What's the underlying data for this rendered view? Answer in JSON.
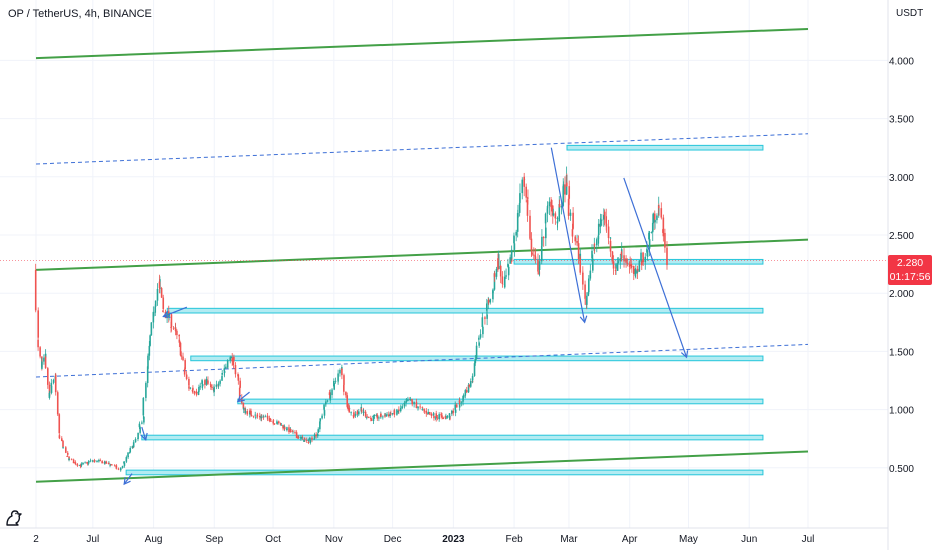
{
  "header": {
    "symbol_title": "OP / TetherUS, 4h, BINANCE",
    "unit": "USDT"
  },
  "price_tag": {
    "price": "2.280",
    "countdown": "01:17:56",
    "color": "#f23645"
  },
  "logo": {
    "icon": "tradingview-logo-icon"
  },
  "colors": {
    "candle_up": "#26a69a",
    "candle_down": "#ef5350",
    "trendline": "#43a047",
    "dashed_channel": "#3d6fd6",
    "zone_fill": "#b2ebf2",
    "zone_border": "#26c6da",
    "arrow": "#3d6fd6",
    "price_line": "#f23645"
  },
  "chart_data": {
    "type": "candlestick",
    "title": "OP / TetherUS, 4h, BINANCE",
    "ylabel": "USDT",
    "y_scale": "linear",
    "ylim": [
      0.2,
      4.6
    ],
    "y_ticks": [
      "4.000",
      "3.500",
      "3.000",
      "2.500",
      "2.000",
      "1.500",
      "1.000",
      "0.500"
    ],
    "y_tick_values": [
      4.0,
      3.5,
      3.0,
      2.5,
      2.0,
      1.5,
      1.0,
      0.5
    ],
    "x_ticks": [
      "2",
      "Jul",
      "Aug",
      "Sep",
      "Oct",
      "Nov",
      "Dec",
      "2023",
      "Feb",
      "Mar",
      "Apr",
      "May",
      "Jun",
      "Jul"
    ],
    "x_tick_dates": [
      "2022-06-02",
      "2022-07-01",
      "2022-08-01",
      "2022-09-01",
      "2022-10-01",
      "2022-11-01",
      "2022-12-01",
      "2023-01-01",
      "2023-02-01",
      "2023-03-01",
      "2023-04-01",
      "2023-05-01",
      "2023-06-01",
      "2023-07-01"
    ],
    "x_range": [
      "2022-06-02",
      "2023-07-31"
    ],
    "grid": true,
    "last_price": 2.28,
    "price_path": [
      [
        "2022-06-02",
        2.2
      ],
      [
        "2022-06-03",
        1.6
      ],
      [
        "2022-06-05",
        1.35
      ],
      [
        "2022-06-07",
        1.45
      ],
      [
        "2022-06-09",
        1.1
      ],
      [
        "2022-06-12",
        1.3
      ],
      [
        "2022-06-14",
        0.78
      ],
      [
        "2022-06-18",
        0.6
      ],
      [
        "2022-06-21",
        0.55
      ],
      [
        "2022-06-25",
        0.52
      ],
      [
        "2022-07-01",
        0.56
      ],
      [
        "2022-07-06",
        0.55
      ],
      [
        "2022-07-12",
        0.52
      ],
      [
        "2022-07-15",
        0.48
      ],
      [
        "2022-07-19",
        0.6
      ],
      [
        "2022-07-24",
        0.75
      ],
      [
        "2022-07-27",
        0.95
      ],
      [
        "2022-07-29",
        1.35
      ],
      [
        "2022-08-01",
        1.8
      ],
      [
        "2022-08-04",
        2.1
      ],
      [
        "2022-08-06",
        1.85
      ],
      [
        "2022-08-09",
        1.8
      ],
      [
        "2022-08-14",
        1.6
      ],
      [
        "2022-08-19",
        1.2
      ],
      [
        "2022-08-23",
        1.15
      ],
      [
        "2022-08-28",
        1.25
      ],
      [
        "2022-09-01",
        1.15
      ],
      [
        "2022-09-05",
        1.3
      ],
      [
        "2022-09-10",
        1.45
      ],
      [
        "2022-09-13",
        1.3
      ],
      [
        "2022-09-16",
        1.0
      ],
      [
        "2022-09-22",
        0.95
      ],
      [
        "2022-09-30",
        0.92
      ],
      [
        "2022-10-07",
        0.85
      ],
      [
        "2022-10-13",
        0.78
      ],
      [
        "2022-10-19",
        0.72
      ],
      [
        "2022-10-24",
        0.8
      ],
      [
        "2022-10-27",
        1.0
      ],
      [
        "2022-11-01",
        1.2
      ],
      [
        "2022-11-05",
        1.35
      ],
      [
        "2022-11-08",
        1.05
      ],
      [
        "2022-11-11",
        0.95
      ],
      [
        "2022-11-15",
        1.0
      ],
      [
        "2022-11-20",
        0.92
      ],
      [
        "2022-11-27",
        0.95
      ],
      [
        "2022-12-04",
        0.98
      ],
      [
        "2022-12-10",
        1.08
      ],
      [
        "2022-12-16",
        1.0
      ],
      [
        "2022-12-22",
        0.95
      ],
      [
        "2022-12-30",
        0.93
      ],
      [
        "2023-01-06",
        1.1
      ],
      [
        "2023-01-11",
        1.25
      ],
      [
        "2023-01-14",
        1.6
      ],
      [
        "2023-01-18",
        1.85
      ],
      [
        "2023-01-21",
        2.0
      ],
      [
        "2023-01-24",
        2.3
      ],
      [
        "2023-01-27",
        2.05
      ],
      [
        "2023-01-31",
        2.3
      ],
      [
        "2023-02-03",
        2.65
      ],
      [
        "2023-02-06",
        3.0
      ],
      [
        "2023-02-08",
        2.8
      ],
      [
        "2023-02-10",
        2.35
      ],
      [
        "2023-02-14",
        2.2
      ],
      [
        "2023-02-17",
        2.6
      ],
      [
        "2023-02-20",
        2.8
      ],
      [
        "2023-02-23",
        2.6
      ],
      [
        "2023-02-26",
        2.85
      ],
      [
        "2023-02-28",
        2.95
      ],
      [
        "2023-03-03",
        2.55
      ],
      [
        "2023-03-07",
        2.3
      ],
      [
        "2023-03-10",
        1.9
      ],
      [
        "2023-03-13",
        2.3
      ],
      [
        "2023-03-16",
        2.5
      ],
      [
        "2023-03-19",
        2.7
      ],
      [
        "2023-03-22",
        2.45
      ],
      [
        "2023-03-25",
        2.2
      ],
      [
        "2023-03-28",
        2.35
      ],
      [
        "2023-04-01",
        2.25
      ],
      [
        "2023-04-04",
        2.15
      ],
      [
        "2023-04-07",
        2.28
      ],
      [
        "2023-04-10",
        2.35
      ],
      [
        "2023-04-13",
        2.6
      ],
      [
        "2023-04-16",
        2.75
      ],
      [
        "2023-04-18",
        2.55
      ],
      [
        "2023-04-20",
        2.28
      ]
    ],
    "annotations": {
      "trendlines": [
        {
          "from": [
            "2022-06-02",
            4.02
          ],
          "to": [
            "2023-07-01",
            4.27
          ]
        },
        {
          "from": [
            "2022-06-02",
            2.2
          ],
          "to": [
            "2023-07-01",
            2.46
          ]
        },
        {
          "from": [
            "2022-06-02",
            0.38
          ],
          "to": [
            "2023-07-01",
            0.64
          ]
        }
      ],
      "dashed_lines": [
        {
          "from": [
            "2022-06-02",
            3.11
          ],
          "to": [
            "2023-07-01",
            3.37
          ]
        },
        {
          "from": [
            "2022-06-02",
            1.28
          ],
          "to": [
            "2023-07-01",
            1.56
          ]
        }
      ],
      "horizontal_zones": [
        {
          "from": "2023-02-28",
          "to": "2023-06-08",
          "y_low": 3.23,
          "y_high": 3.27
        },
        {
          "from": "2023-02-01",
          "to": "2023-06-08",
          "y_low": 2.25,
          "y_high": 2.29
        },
        {
          "from": "2022-08-08",
          "to": "2023-06-08",
          "y_low": 1.83,
          "y_high": 1.87
        },
        {
          "from": "2022-08-20",
          "to": "2023-06-08",
          "y_low": 1.42,
          "y_high": 1.46
        },
        {
          "from": "2022-09-13",
          "to": "2023-06-08",
          "y_low": 1.05,
          "y_high": 1.09
        },
        {
          "from": "2022-07-26",
          "to": "2023-06-08",
          "y_low": 0.74,
          "y_high": 0.78
        },
        {
          "from": "2022-07-18",
          "to": "2023-06-08",
          "y_low": 0.44,
          "y_high": 0.48
        }
      ],
      "arrows": [
        {
          "from": [
            "2023-02-20",
            3.25
          ],
          "to": [
            "2023-03-09",
            1.75
          ]
        },
        {
          "from": [
            "2023-03-29",
            2.99
          ],
          "to": [
            "2023-04-30",
            1.45
          ]
        },
        {
          "from": [
            "2022-07-21",
            0.45
          ],
          "to": [
            "2022-07-17",
            0.36
          ]
        },
        {
          "from": [
            "2022-07-26",
            0.85
          ],
          "to": [
            "2022-07-28",
            0.74
          ]
        },
        {
          "from": [
            "2022-08-18",
            1.88
          ],
          "to": [
            "2022-08-06",
            1.8
          ]
        },
        {
          "from": [
            "2022-09-19",
            1.15
          ],
          "to": [
            "2022-09-13",
            1.07
          ]
        }
      ]
    }
  }
}
